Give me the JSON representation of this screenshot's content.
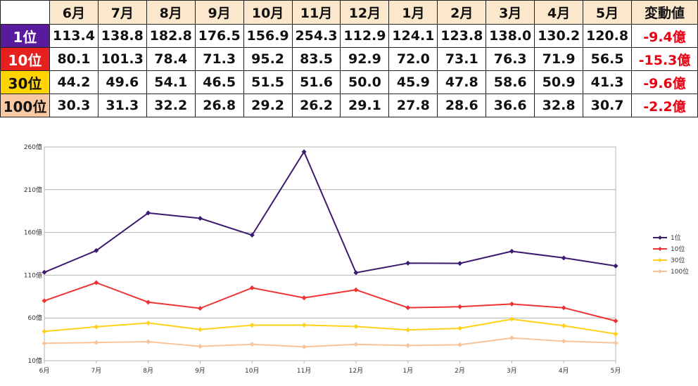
{
  "table": {
    "corner": "",
    "months": [
      "6月",
      "7月",
      "8月",
      "9月",
      "10月",
      "11月",
      "12月",
      "1月",
      "2月",
      "3月",
      "4月",
      "5月"
    ],
    "change_header": "変動値",
    "rows": [
      {
        "rank": "1位",
        "rank_bg": "#5a1a9e",
        "rank_color": "#ffffff",
        "values": [
          "113.4",
          "138.8",
          "182.8",
          "176.5",
          "156.9",
          "254.3",
          "112.9",
          "124.1",
          "123.8",
          "138.0",
          "130.2",
          "120.8"
        ],
        "change": "-9.4億"
      },
      {
        "rank": "10位",
        "rank_bg": "#e61f1f",
        "rank_color": "#ffffff",
        "values": [
          "80.1",
          "101.3",
          "78.4",
          "71.3",
          "95.2",
          "83.5",
          "92.9",
          "72.0",
          "73.1",
          "76.3",
          "71.9",
          "56.5"
        ],
        "change": "-15.3億"
      },
      {
        "rank": "30位",
        "rank_bg": "#ffd400",
        "rank_color": "#111111",
        "values": [
          "44.2",
          "49.6",
          "54.1",
          "46.5",
          "51.5",
          "51.6",
          "50.0",
          "45.9",
          "47.8",
          "58.6",
          "50.9",
          "41.3"
        ],
        "change": "-9.6億"
      },
      {
        "rank": "100位",
        "rank_bg": "#f8c9a2",
        "rank_color": "#111111",
        "values": [
          "30.3",
          "31.3",
          "32.2",
          "26.8",
          "29.2",
          "26.2",
          "29.1",
          "27.8",
          "28.6",
          "36.6",
          "32.8",
          "30.7"
        ],
        "change": "-2.2億"
      }
    ]
  },
  "chart_data": {
    "type": "line",
    "categories": [
      "6月",
      "7月",
      "8月",
      "9月",
      "10月",
      "11月",
      "12月",
      "1月",
      "2月",
      "3月",
      "4月",
      "5月"
    ],
    "y_tick_labels": [
      "10億",
      "60億",
      "110億",
      "160億",
      "210億",
      "260億"
    ],
    "ylim": [
      10,
      260
    ],
    "grid": true,
    "legend_position": "right",
    "series": [
      {
        "name": "1位",
        "color": "#3d1a6e",
        "values": [
          113.4,
          138.8,
          182.8,
          176.5,
          156.9,
          254.3,
          112.9,
          124.1,
          123.8,
          138.0,
          130.2,
          120.8
        ]
      },
      {
        "name": "10位",
        "color": "#ee3333",
        "values": [
          80.1,
          101.3,
          78.4,
          71.3,
          95.2,
          83.5,
          92.9,
          72.0,
          73.1,
          76.3,
          71.9,
          56.5
        ]
      },
      {
        "name": "30位",
        "color": "#ffd11a",
        "values": [
          44.2,
          49.6,
          54.1,
          46.5,
          51.5,
          51.6,
          50.0,
          45.9,
          47.8,
          58.6,
          50.9,
          41.3
        ]
      },
      {
        "name": "100位",
        "color": "#f9c49a",
        "values": [
          30.3,
          31.3,
          32.2,
          26.8,
          29.2,
          26.2,
          29.1,
          27.8,
          28.6,
          36.6,
          32.8,
          30.7
        ]
      }
    ]
  }
}
